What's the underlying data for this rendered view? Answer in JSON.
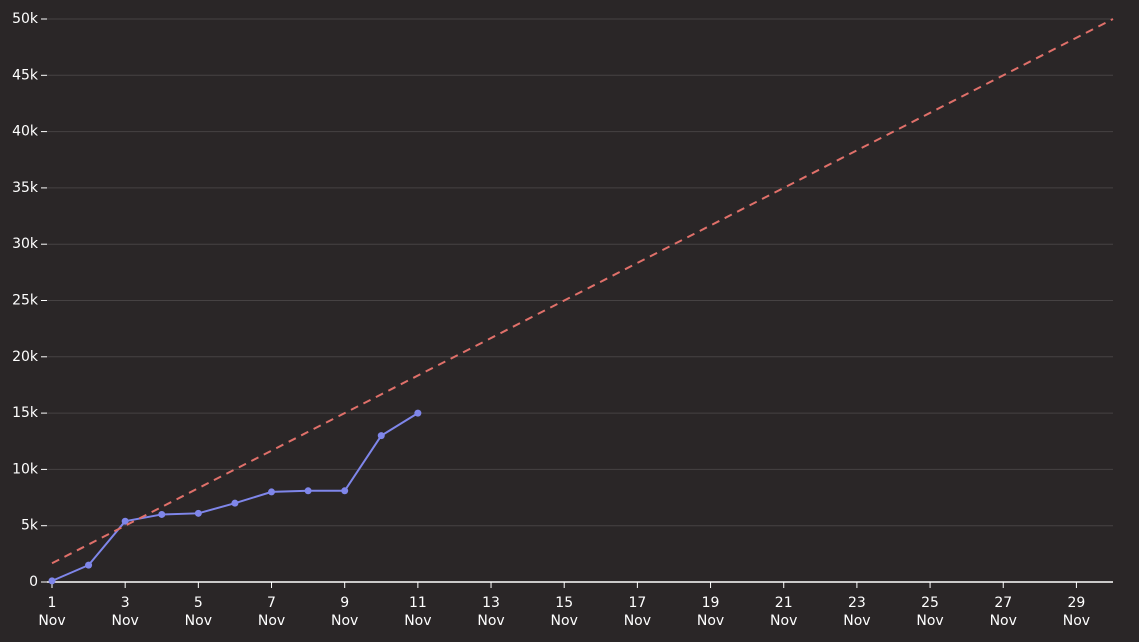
{
  "chart_data": {
    "type": "line",
    "x": [
      1,
      2,
      3,
      4,
      5,
      6,
      7,
      8,
      9,
      10,
      11
    ],
    "series": [
      {
        "color": "#7f86ea",
        "values": [
          100,
          1500,
          5400,
          6000,
          6100,
          7000,
          8000,
          8100,
          8100,
          13000,
          15000
        ],
        "markers": true
      },
      {
        "color": "#e0706a",
        "x": [
          1,
          30
        ],
        "values": [
          1667,
          50000
        ],
        "dashed": true
      }
    ],
    "xlim": [
      1,
      30
    ],
    "xticks": [
      {
        "value": 1,
        "label": "1 Nov"
      },
      {
        "value": 3,
        "label": "3 Nov"
      },
      {
        "value": 5,
        "label": "5 Nov"
      },
      {
        "value": 7,
        "label": "7 Nov"
      },
      {
        "value": 9,
        "label": "9 Nov"
      },
      {
        "value": 11,
        "label": "11 Nov"
      },
      {
        "value": 13,
        "label": "13 Nov"
      },
      {
        "value": 15,
        "label": "15 Nov"
      },
      {
        "value": 17,
        "label": "17 Nov"
      },
      {
        "value": 19,
        "label": "19 Nov"
      },
      {
        "value": 21,
        "label": "21 Nov"
      },
      {
        "value": 23,
        "label": "23 Nov"
      },
      {
        "value": 25,
        "label": "25 Nov"
      },
      {
        "value": 27,
        "label": "27 Nov"
      },
      {
        "value": 29,
        "label": "29 Nov"
      }
    ],
    "ylim": [
      0,
      50000
    ],
    "yticks": [
      0,
      {
        "value": 5000,
        "label": "5k"
      },
      {
        "value": 10000,
        "label": "10k"
      },
      {
        "value": 15000,
        "label": "15k"
      },
      {
        "value": 20000,
        "label": "20k"
      },
      {
        "value": 25000,
        "label": "25k"
      },
      {
        "value": 30000,
        "label": "30k"
      },
      {
        "value": 35000,
        "label": "35k"
      },
      {
        "value": 40000,
        "label": "40k"
      },
      {
        "value": 45000,
        "label": "45k"
      },
      {
        "value": 50000,
        "label": "50k"
      }
    ],
    "grid": true
  }
}
